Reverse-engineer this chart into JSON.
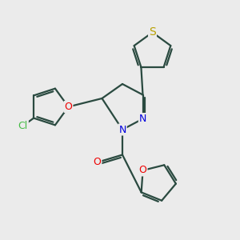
{
  "bg_color": "#ebebeb",
  "bond_color": "#2a4a40",
  "bond_width": 1.6,
  "atoms": {
    "S": {
      "color": "#b8a000"
    },
    "O": {
      "color": "#ee0000"
    },
    "N": {
      "color": "#0000dd"
    },
    "Cl": {
      "color": "#44bb44"
    },
    "C": {
      "color": "#2a4a40"
    }
  },
  "font_size": 9,
  "fig_size": [
    3.0,
    3.0
  ],
  "dpi": 100
}
